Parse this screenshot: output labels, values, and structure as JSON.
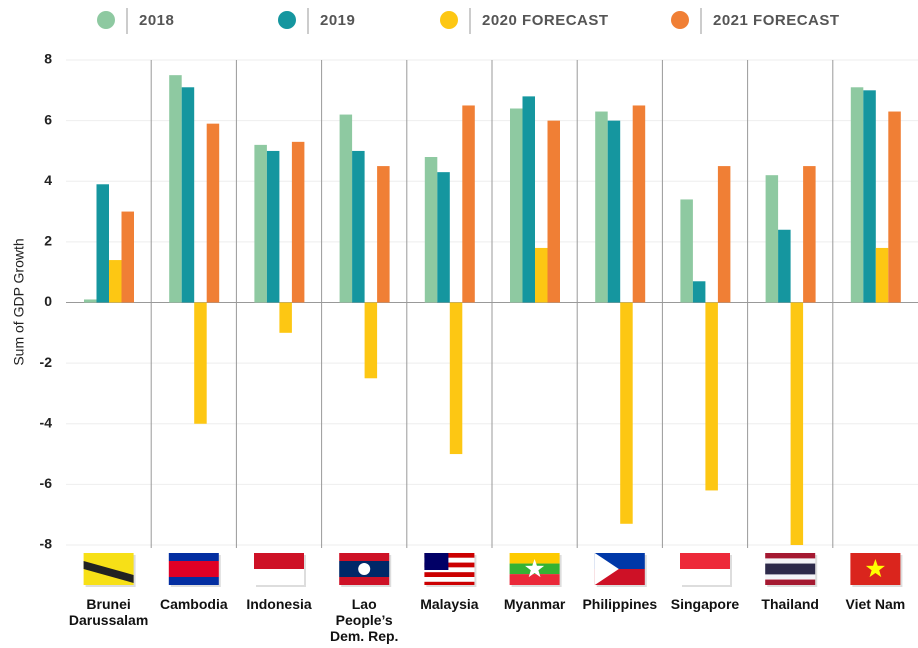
{
  "chart_data": {
    "type": "bar",
    "y_label": "Sum of GDP Growth",
    "categories": [
      "Brunei\nDarussalam",
      "Cambodia",
      "Indonesia",
      "Lao\nPeople’s\nDem. Rep.",
      "Malaysia",
      "Myanmar",
      "Philippines",
      "Singapore",
      "Thailand",
      "Viet Nam"
    ],
    "series": [
      {
        "name": "2018",
        "color": "#8ec9a1",
        "values": [
          0.1,
          7.5,
          5.2,
          6.2,
          4.8,
          6.4,
          6.3,
          3.4,
          4.2,
          7.1
        ]
      },
      {
        "name": "2019",
        "color": "#15969f",
        "values": [
          3.9,
          7.1,
          5.0,
          5.0,
          4.3,
          6.8,
          6.0,
          0.7,
          2.4,
          7.0
        ]
      },
      {
        "name": "2020 FORECAST",
        "color": "#fdc713",
        "values": [
          1.4,
          -4.0,
          -1.0,
          -2.5,
          -5.0,
          1.8,
          -7.3,
          -6.2,
          -8.0,
          1.8
        ]
      },
      {
        "name": "2021 FORECAST",
        "color": "#f07f35",
        "values": [
          3.0,
          5.9,
          5.3,
          4.5,
          6.5,
          6.0,
          6.5,
          4.5,
          4.5,
          6.3
        ]
      }
    ],
    "ylim": [
      -8,
      8
    ],
    "yticks": [
      -8,
      -6,
      -4,
      -2,
      0,
      2,
      4,
      6,
      8
    ],
    "grid": true
  }
}
